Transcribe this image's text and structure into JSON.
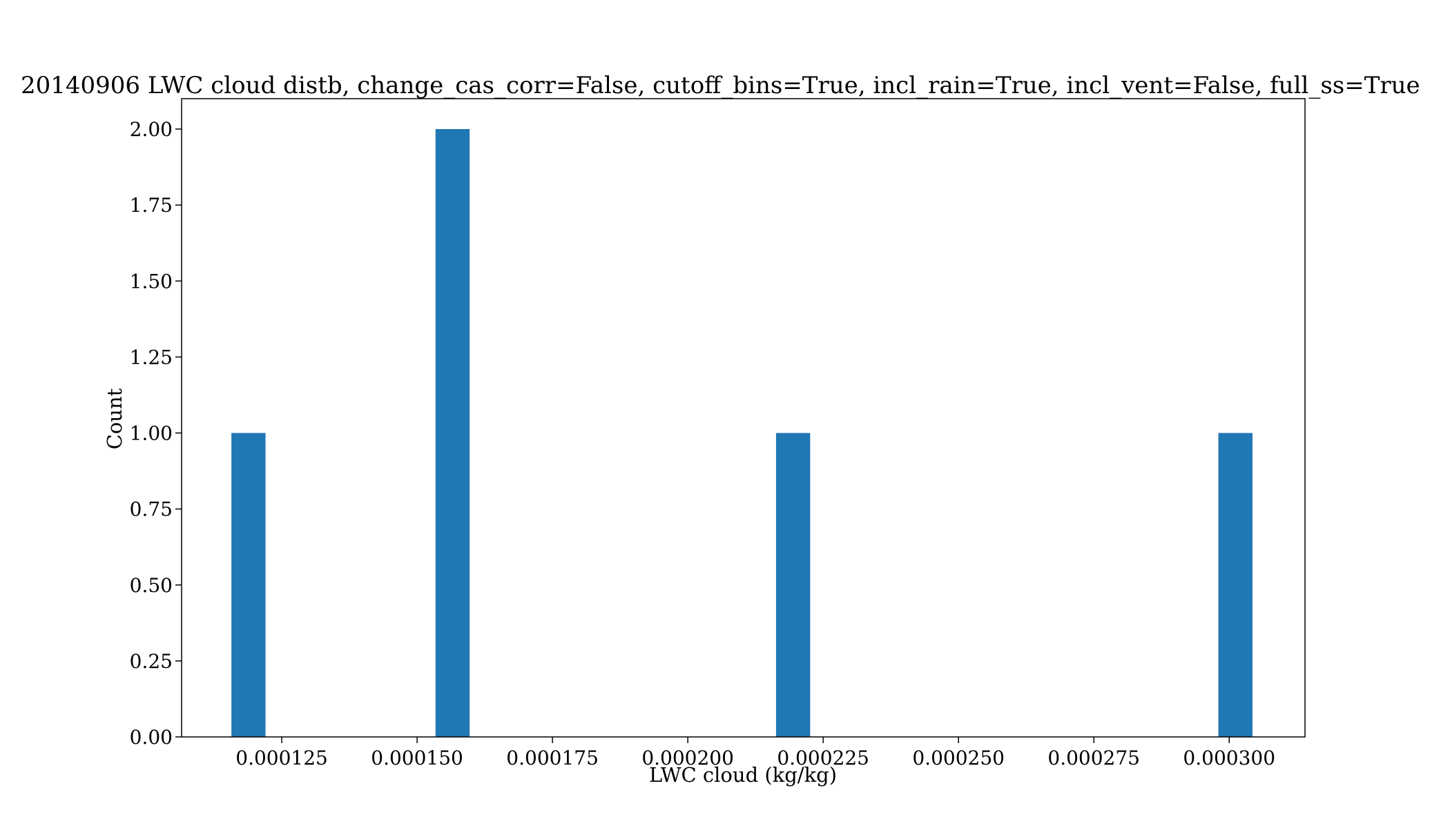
{
  "chart_data": {
    "type": "bar",
    "title": "20140906 LWC cloud distb, change_cas_corr=False, cutoff_bins=True, incl_rain=True, incl_vent=False, full_ss=True",
    "xlabel": "LWC cloud (kg/kg)",
    "ylabel": "Count",
    "xlim": [
      0.0001065,
      0.000314
    ],
    "ylim": [
      0,
      2.1
    ],
    "x_ticks": [
      0.000125,
      0.00015,
      0.000175,
      0.0002,
      0.000225,
      0.00025,
      0.000275,
      0.0003
    ],
    "x_tick_labels": [
      "0.000125",
      "0.000150",
      "0.000175",
      "0.000200",
      "0.000225",
      "0.000250",
      "0.000275",
      "0.000300"
    ],
    "y_ticks": [
      0,
      0.25,
      0.5,
      0.75,
      1,
      1.25,
      1.5,
      1.75,
      2
    ],
    "y_tick_labels": [
      "0.00",
      "0.25",
      "0.50",
      "0.75",
      "1.00",
      "1.25",
      "1.50",
      "1.75",
      "2.00"
    ],
    "bins": [
      {
        "x0": 0.0001157,
        "x1": 0.000122,
        "count": 1
      },
      {
        "x0": 0.0001534,
        "x1": 0.0001597,
        "count": 2
      },
      {
        "x0": 0.0002163,
        "x1": 0.0002226,
        "count": 1
      },
      {
        "x0": 0.000298,
        "x1": 0.0003043,
        "count": 1
      }
    ],
    "bar_color": "#1f77b4",
    "grid": false,
    "legend": "none"
  }
}
